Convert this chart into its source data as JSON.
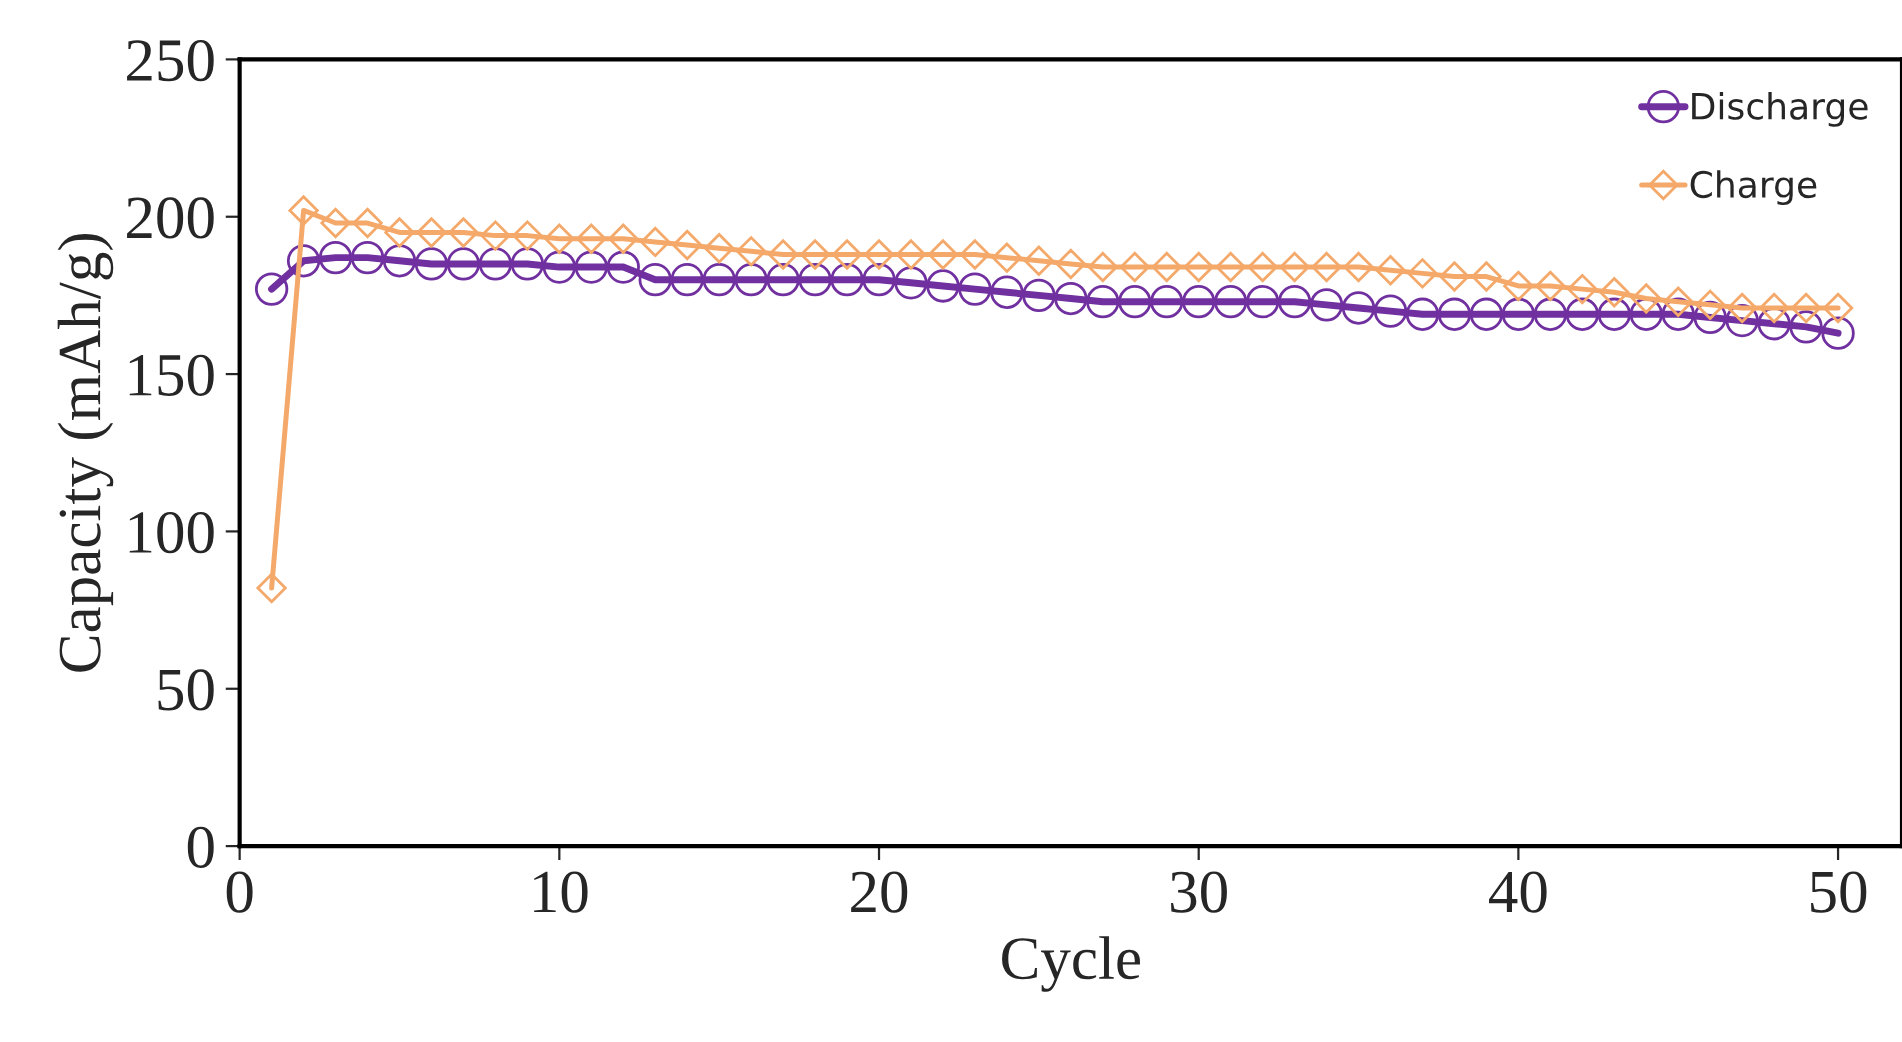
{
  "chart_data": {
    "type": "line",
    "xlabel": "Cycle",
    "ylabel": "Capacity (mAh/g)",
    "x": [
      1,
      2,
      3,
      4,
      5,
      6,
      7,
      8,
      9,
      10,
      11,
      12,
      13,
      14,
      15,
      16,
      17,
      18,
      19,
      20,
      21,
      22,
      23,
      24,
      25,
      26,
      27,
      28,
      29,
      30,
      31,
      32,
      33,
      34,
      35,
      36,
      37,
      38,
      39,
      40,
      41,
      42,
      43,
      44,
      45,
      46,
      47,
      48,
      49,
      50
    ],
    "series": [
      {
        "name": "Discharge",
        "color": "#7030a0",
        "marker": "circle",
        "values": [
          177,
          186,
          187,
          187,
          186,
          185,
          185,
          185,
          185,
          184,
          184,
          184,
          180,
          180,
          180,
          180,
          180,
          180,
          180,
          180,
          179,
          178,
          177,
          176,
          175,
          174,
          173,
          173,
          173,
          173,
          173,
          173,
          173,
          172,
          171,
          170,
          169,
          169,
          169,
          169,
          169,
          169,
          169,
          169,
          169,
          168,
          167,
          166,
          165,
          163
        ]
      },
      {
        "name": "Charge",
        "color": "#f4a96a",
        "marker": "diamond",
        "values": [
          82,
          202,
          198,
          198,
          195,
          195,
          195,
          194,
          194,
          193,
          193,
          193,
          192,
          191,
          190,
          189,
          188,
          188,
          188,
          188,
          188,
          188,
          188,
          187,
          186,
          185,
          184,
          184,
          184,
          184,
          184,
          184,
          184,
          184,
          184,
          183,
          182,
          181,
          181,
          178,
          178,
          177,
          176,
          174,
          173,
          172,
          171,
          171,
          171,
          171
        ]
      }
    ],
    "xlim": [
      0,
      52
    ],
    "xticks": [
      0,
      10,
      20,
      30,
      40,
      50
    ],
    "ylim": [
      0,
      250
    ],
    "yticks": [
      0,
      50,
      100,
      150,
      200,
      250
    ],
    "grid": false,
    "legend": "top right",
    "line_style": "solid"
  }
}
